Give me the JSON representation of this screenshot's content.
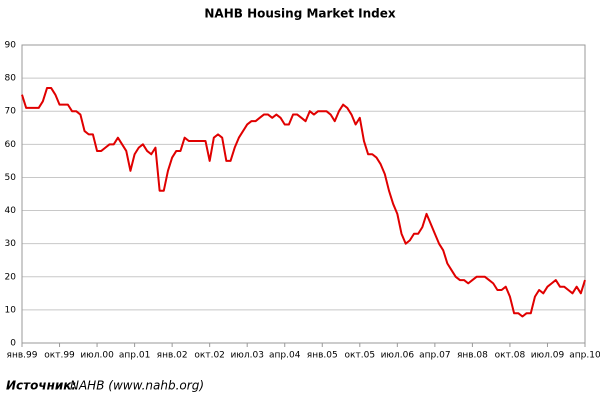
{
  "chart_data": {
    "type": "line",
    "title": "NAHB Housing Market Index",
    "categories": [
      "янв.99",
      null,
      null,
      null,
      null,
      null,
      null,
      null,
      null,
      "окт.99",
      null,
      null,
      null,
      null,
      null,
      null,
      null,
      null,
      "июл.00",
      null,
      null,
      null,
      null,
      null,
      null,
      null,
      null,
      "апр.01",
      null,
      null,
      null,
      null,
      null,
      null,
      null,
      null,
      "янв.02",
      null,
      null,
      null,
      null,
      null,
      null,
      null,
      null,
      "окт.02",
      null,
      null,
      null,
      null,
      null,
      null,
      null,
      null,
      "июл.03",
      null,
      null,
      null,
      null,
      null,
      null,
      null,
      null,
      "апр.04",
      null,
      null,
      null,
      null,
      null,
      null,
      null,
      null,
      "янв.05",
      null,
      null,
      null,
      null,
      null,
      null,
      null,
      null,
      "окт.05",
      null,
      null,
      null,
      null,
      null,
      null,
      null,
      null,
      "июл.06",
      null,
      null,
      null,
      null,
      null,
      null,
      null,
      null,
      "апр.07",
      null,
      null,
      null,
      null,
      null,
      null,
      null,
      null,
      "янв.08",
      null,
      null,
      null,
      null,
      null,
      null,
      null,
      null,
      "окт.08",
      null,
      null,
      null,
      null,
      null,
      null,
      null,
      null,
      "июл.09",
      null,
      null,
      null,
      null,
      null,
      null,
      null,
      null,
      "апр.10"
    ],
    "values": [
      75,
      71,
      71,
      71,
      71,
      73,
      77,
      77,
      75,
      72,
      72,
      72,
      70,
      70,
      69,
      64,
      63,
      63,
      58,
      58,
      59,
      60,
      60,
      62,
      60,
      58,
      52,
      57,
      59,
      60,
      58,
      57,
      59,
      46,
      46,
      52,
      56,
      58,
      58,
      62,
      61,
      61,
      61,
      61,
      61,
      55,
      62,
      63,
      62,
      55,
      55,
      59,
      62,
      64,
      66,
      67,
      67,
      68,
      69,
      69,
      68,
      69,
      68,
      66,
      66,
      69,
      69,
      68,
      67,
      70,
      69,
      70,
      70,
      70,
      69,
      67,
      70,
      72,
      71,
      69,
      66,
      68,
      61,
      57,
      57,
      56,
      54,
      51,
      46,
      42,
      39,
      33,
      30,
      31,
      33,
      33,
      35,
      39,
      36,
      33,
      30,
      28,
      24,
      22,
      20,
      19,
      19,
      18,
      19,
      20,
      20,
      20,
      19,
      18,
      16,
      16,
      17,
      14,
      9,
      9,
      8,
      9,
      9,
      14,
      16,
      15,
      17,
      18,
      19,
      17,
      17,
      16,
      15,
      17,
      15,
      19
    ],
    "color": "#e00000",
    "ylim": [
      0,
      90
    ],
    "yticks": [
      0,
      10,
      20,
      30,
      40,
      50,
      60,
      70,
      80,
      90
    ],
    "grid": true,
    "source_label": "Источник:",
    "source_text": "NAHB (www.nahb.org)"
  }
}
